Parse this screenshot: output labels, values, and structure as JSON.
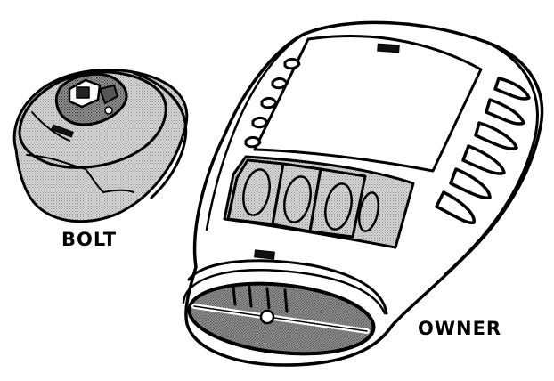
{
  "labels": {
    "bolt": "BOLT",
    "owner": "OWNER"
  },
  "colors": {
    "ink": "#000000",
    "paper": "#ffffff",
    "shade": "#c8c8c8",
    "shade_dark": "#8a8a8a"
  }
}
